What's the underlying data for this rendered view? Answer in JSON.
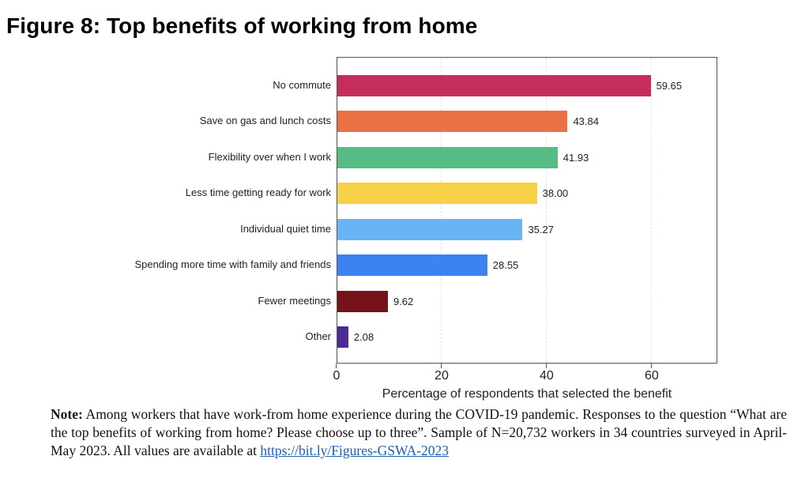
{
  "figure": {
    "title": "Figure 8: Top benefits of working from home"
  },
  "chart_data": {
    "type": "bar",
    "orientation": "horizontal",
    "title": "Figure 8: Top benefits of working from home",
    "xlabel": "Percentage of respondents that selected the benefit",
    "ylabel": "",
    "xlim": [
      0,
      72.5
    ],
    "xticks": [
      0,
      20,
      40,
      60
    ],
    "xtick_labels": [
      "0",
      "20",
      "40",
      "60"
    ],
    "grid": "vertical dashed at x ticks",
    "legend": "none",
    "categories": [
      "No commute",
      "Save on gas and lunch costs",
      "Flexibility over when I work",
      "Less time getting ready for work",
      "Individual quiet time",
      "Spending more time with family and friends",
      "Fewer meetings",
      "Other"
    ],
    "values": [
      59.65,
      43.84,
      41.93,
      38.0,
      35.27,
      28.55,
      9.62,
      2.08
    ],
    "value_labels": [
      "59.65",
      "43.84",
      "41.93",
      "38.00",
      "35.27",
      "28.55",
      "9.62",
      "2.08"
    ],
    "colors": [
      "#c52d5b",
      "#ec7046",
      "#55bd83",
      "#f7d148",
      "#6ab4f6",
      "#3d82f1",
      "#741319",
      "#4d2b94"
    ]
  },
  "note": {
    "label": "Note:",
    "text": " Among workers that have work-from home experience during the COVID-19 pandemic. Responses to the question “What are the top benefits of working from home? Please choose up to three”. Sample of N=20,732 workers in 34 countries surveyed in April-May 2023. All values are available at ",
    "link_text": "https://bit.ly/Figures-GSWA-2023"
  }
}
